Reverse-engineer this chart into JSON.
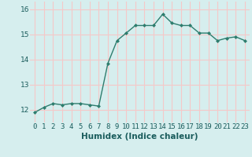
{
  "x": [
    0,
    1,
    2,
    3,
    4,
    5,
    6,
    7,
    8,
    9,
    10,
    11,
    12,
    13,
    14,
    15,
    16,
    17,
    18,
    19,
    20,
    21,
    22,
    23
  ],
  "y": [
    11.9,
    12.1,
    12.25,
    12.2,
    12.25,
    12.25,
    12.2,
    12.15,
    13.85,
    14.75,
    15.05,
    15.35,
    15.35,
    15.35,
    15.8,
    15.45,
    15.35,
    15.35,
    15.05,
    15.05,
    14.75,
    14.85,
    14.9,
    14.75
  ],
  "xlabel": "Humidex (Indice chaleur)",
  "ylabel": "",
  "xlim": [
    -0.5,
    23.5
  ],
  "ylim": [
    11.5,
    16.3
  ],
  "yticks": [
    12,
    13,
    14,
    15,
    16
  ],
  "xtick_labels": [
    "0",
    "1",
    "2",
    "3",
    "4",
    "5",
    "6",
    "7",
    "8",
    "9",
    "10",
    "11",
    "12",
    "13",
    "14",
    "15",
    "16",
    "17",
    "18",
    "19",
    "20",
    "21",
    "22",
    "23"
  ],
  "line_color": "#2e7d6e",
  "marker": "D",
  "marker_size": 2.0,
  "bg_color": "#d6eeee",
  "grid_color": "#f5c8c8",
  "line_width": 1.0,
  "tick_fontsize": 6.5,
  "xlabel_fontsize": 7.5,
  "ytick_fontsize": 6.5
}
